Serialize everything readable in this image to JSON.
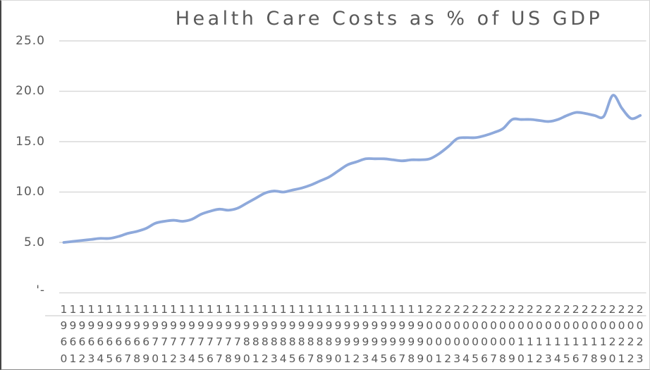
{
  "chart": {
    "title": "Health Care Costs as % of US GDP"
  },
  "chart_data": {
    "type": "line",
    "title": "Health Care Costs as % of US GDP",
    "xlabel": "",
    "ylabel": "",
    "ylim": [
      0,
      25
    ],
    "grid": true,
    "legend": false,
    "smoothed_line": true,
    "line_color": "#8EA9DB",
    "grid_color": "#D9D9D9",
    "text_color": "#595959",
    "y_ticks": [
      25,
      20,
      15,
      10,
      5,
      0
    ],
    "y_tick_labels": [
      "25.0",
      "20.0",
      "15.0",
      "10.0",
      "5.0",
      "'-"
    ],
    "x": [
      1960,
      1961,
      1962,
      1963,
      1964,
      1965,
      1966,
      1967,
      1968,
      1969,
      1970,
      1971,
      1972,
      1973,
      1974,
      1975,
      1976,
      1977,
      1978,
      1979,
      1980,
      1981,
      1982,
      1983,
      1984,
      1985,
      1986,
      1987,
      1988,
      1989,
      1990,
      1991,
      1992,
      1993,
      1994,
      1995,
      1996,
      1997,
      1998,
      1999,
      2000,
      2001,
      2002,
      2003,
      2004,
      2005,
      2006,
      2007,
      2008,
      2009,
      2010,
      2011,
      2012,
      2013,
      2014,
      2015,
      2016,
      2017,
      2018,
      2019,
      2020,
      2021,
      2022,
      2023
    ],
    "series": [
      {
        "name": "Health care costs as % of US GDP",
        "values": [
          5.0,
          5.1,
          5.2,
          5.3,
          5.4,
          5.4,
          5.6,
          5.9,
          6.1,
          6.4,
          6.9,
          7.1,
          7.2,
          7.1,
          7.3,
          7.8,
          8.1,
          8.3,
          8.2,
          8.4,
          8.9,
          9.4,
          9.9,
          10.1,
          10.0,
          10.2,
          10.4,
          10.7,
          11.1,
          11.5,
          12.1,
          12.7,
          13.0,
          13.3,
          13.3,
          13.3,
          13.2,
          13.1,
          13.2,
          13.2,
          13.3,
          13.8,
          14.5,
          15.3,
          15.4,
          15.4,
          15.6,
          15.9,
          16.3,
          17.2,
          17.2,
          17.2,
          17.1,
          17.0,
          17.2,
          17.6,
          17.9,
          17.8,
          17.6,
          17.5,
          19.6,
          18.3,
          17.3,
          17.6
        ]
      }
    ]
  }
}
